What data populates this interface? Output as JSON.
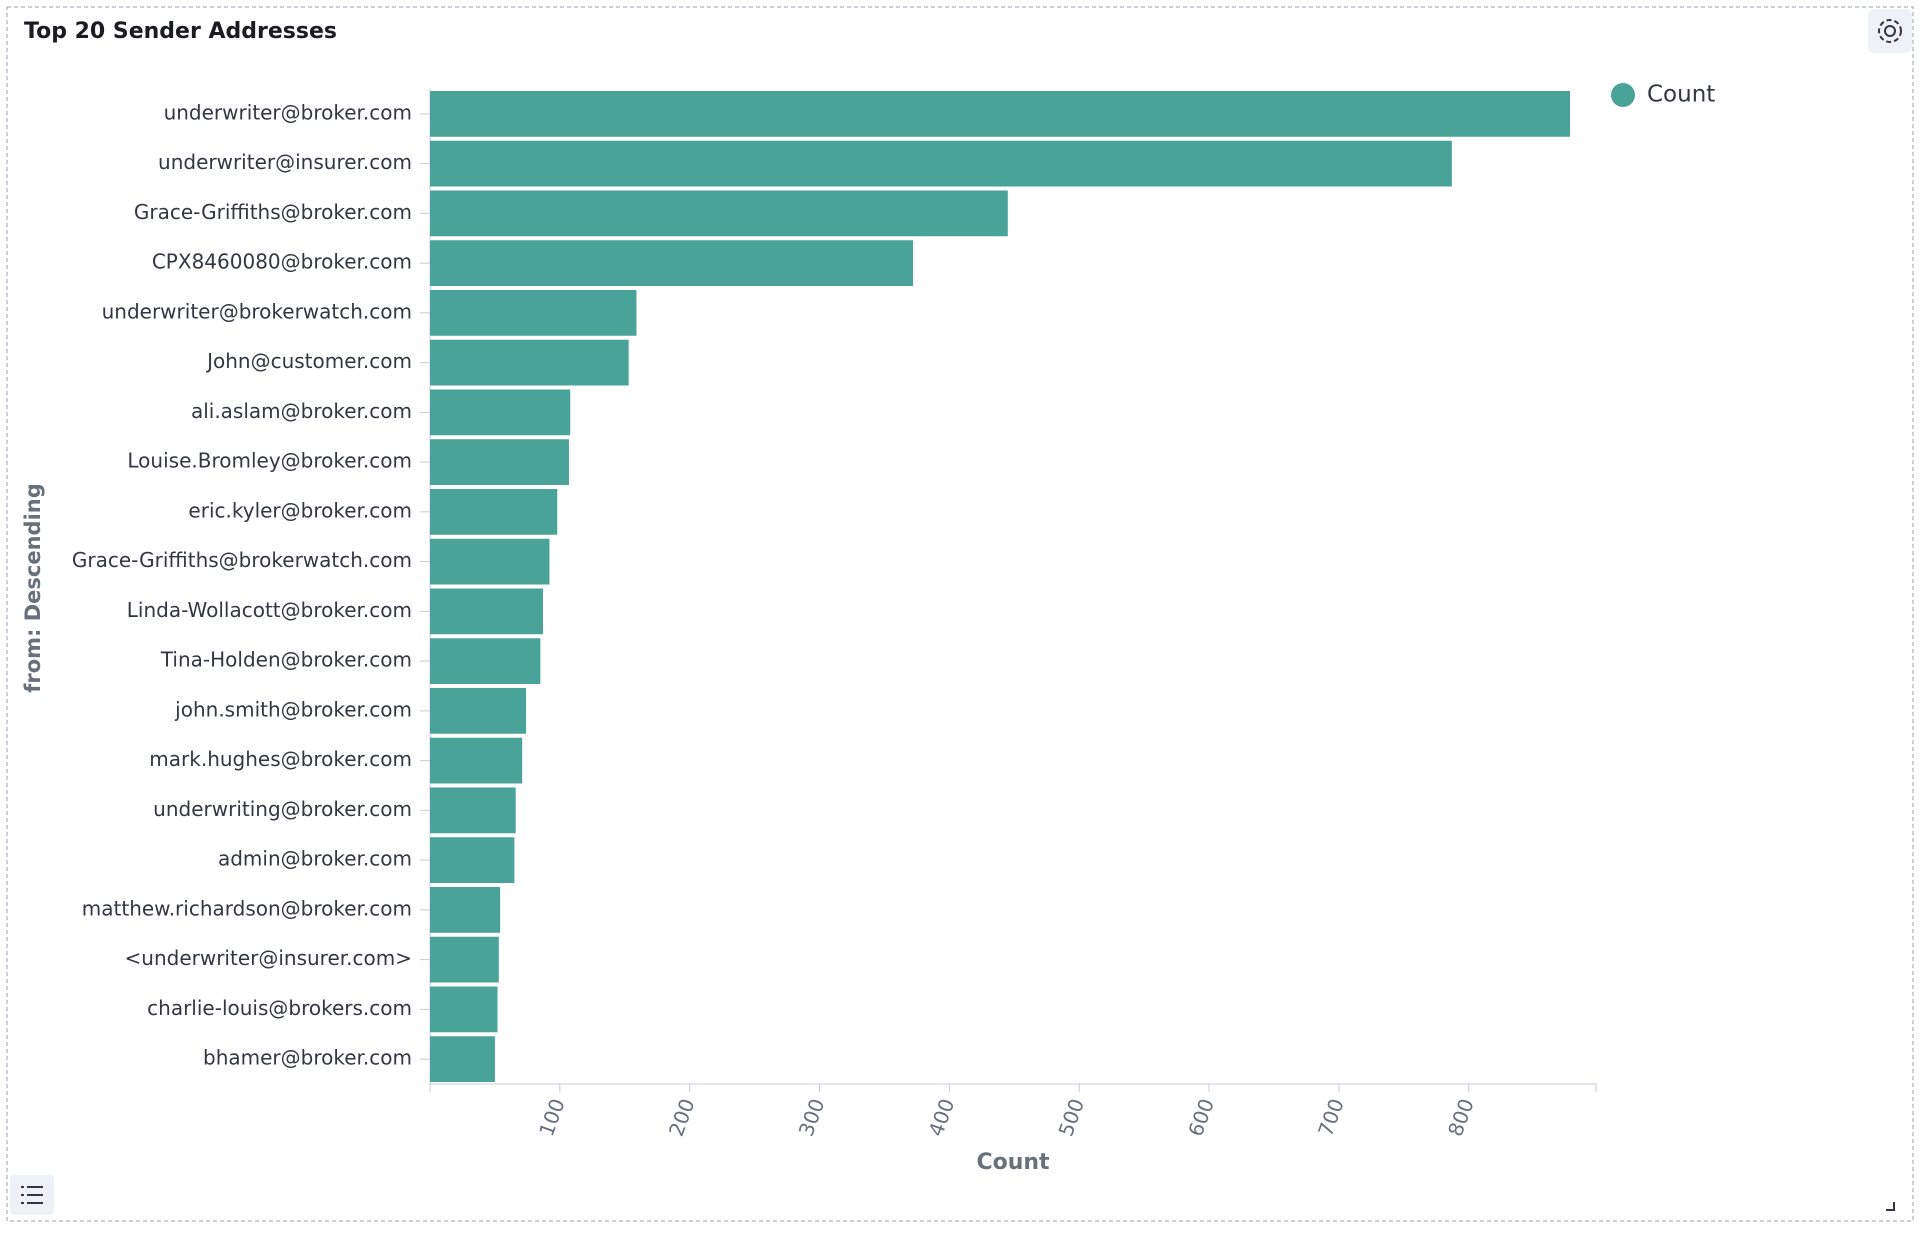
{
  "chart_data": {
    "type": "bar",
    "title": "Top 20 Sender Addresses",
    "x_label": "Count",
    "y_label": "from: Descending",
    "categories": [
      "underwriter@broker.com",
      "underwriter@insurer.com",
      "Grace-Griffiths@broker.com",
      "CPX8460080@broker.com",
      "underwriter@brokerwatch.com",
      "John@customer.com",
      "ali.aslam@broker.com",
      "Louise.Bromley@broker.com",
      "eric.kyler@broker.com",
      "Grace-Griffiths@brokerwatch.com",
      "Linda-Wollacott@broker.com",
      "Tina-Holden@broker.com",
      "john.smith@broker.com",
      "mark.hughes@broker.com",
      "underwriting@broker.com",
      "admin@broker.com",
      "matthew.richardson@broker.com",
      "<underwriter@insurer.com>",
      "charlie-louis@brokers.com",
      "bhamer@broker.com"
    ],
    "series": [
      {
        "name": "Count",
        "color": "#4aa399",
        "values": [
          878,
          787,
          445,
          372,
          159,
          153,
          108,
          107,
          98,
          92,
          87,
          85,
          74,
          71,
          66,
          65,
          54,
          53,
          52,
          50
        ]
      }
    ],
    "xlim": [
      0,
      898
    ],
    "xticks": [
      100,
      200,
      300,
      400,
      500,
      600,
      700,
      800
    ],
    "legend": "top-right"
  }
}
